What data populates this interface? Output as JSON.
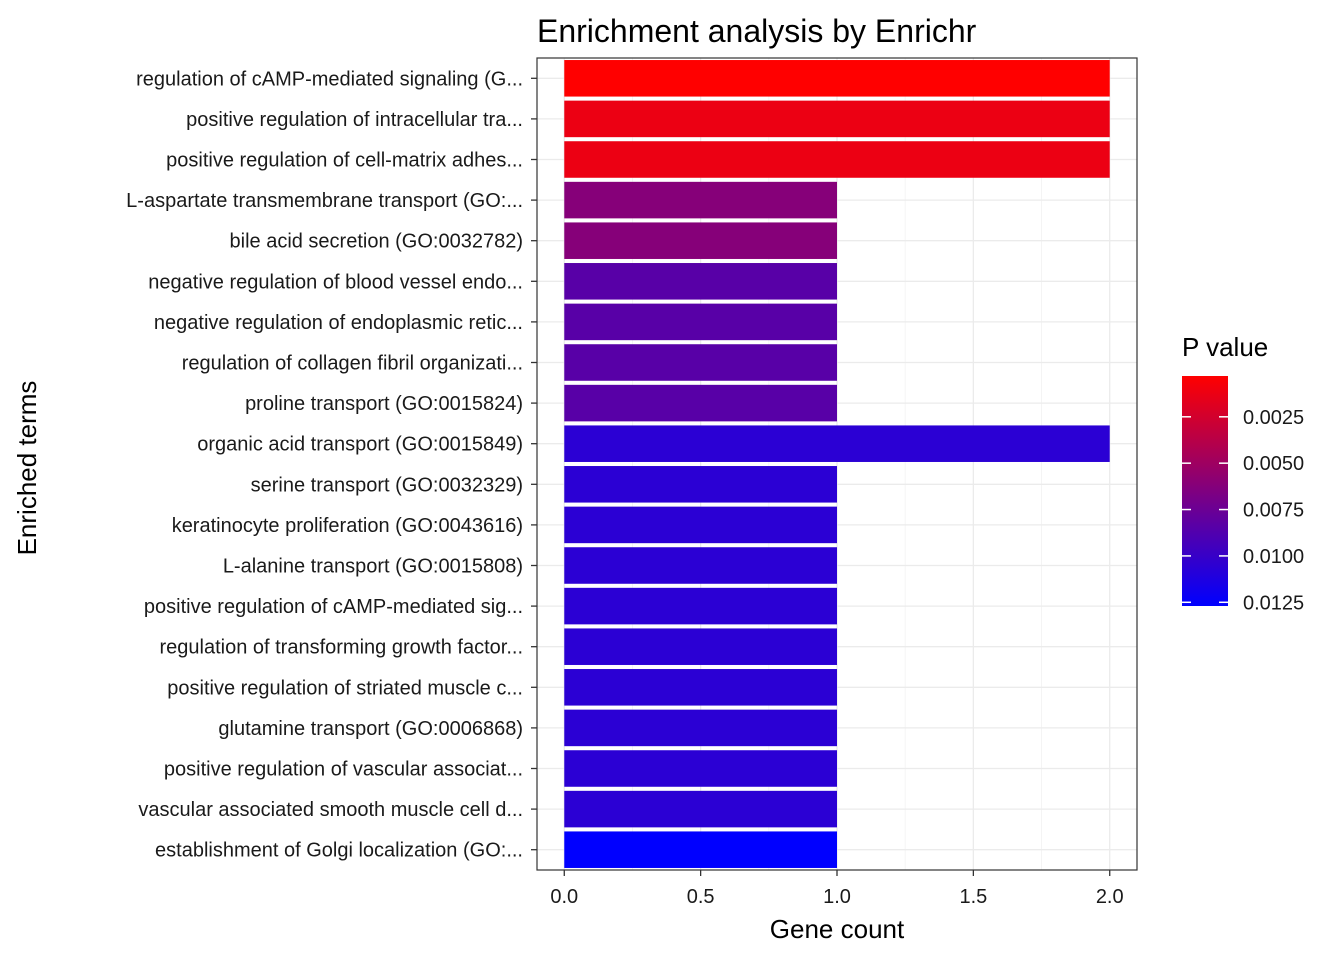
{
  "chart_data": {
    "type": "bar",
    "orientation": "horizontal",
    "title": "Enrichment analysis by Enrichr",
    "xlabel": "Gene count",
    "ylabel": "Enriched terms",
    "xlim": [
      -0.1,
      2.1
    ],
    "xticks": [
      0.0,
      0.5,
      1.0,
      1.5,
      2.0
    ],
    "xtick_labels": [
      "0.0",
      "0.5",
      "1.0",
      "1.5",
      "2.0"
    ],
    "grid": true,
    "categories": [
      "regulation of cAMP-mediated signaling (G...",
      "positive regulation of intracellular tra...",
      "positive regulation of cell-matrix adhes...",
      "L-aspartate transmembrane transport (GO:...",
      "bile acid secretion (GO:0032782)",
      "negative regulation of blood vessel endo...",
      "negative regulation of endoplasmic retic...",
      "regulation of collagen fibril organizati...",
      "proline transport (GO:0015824)",
      "organic acid transport (GO:0015849)",
      "serine transport (GO:0032329)",
      "keratinocyte proliferation (GO:0043616)",
      "L-alanine transport (GO:0015808)",
      "positive regulation of cAMP-mediated sig...",
      "regulation of transforming growth factor...",
      "positive regulation of striated muscle c...",
      "glutamine transport (GO:0006868)",
      "positive regulation of vascular associat...",
      "vascular associated smooth muscle cell d...",
      "establishment of Golgi localization (GO:..."
    ],
    "values": [
      2,
      2,
      2,
      1,
      1,
      1,
      1,
      1,
      1,
      2,
      1,
      1,
      1,
      1,
      1,
      1,
      1,
      1,
      1,
      1
    ],
    "p_values": [
      0.0003,
      0.0012,
      0.0012,
      0.0062,
      0.0062,
      0.0084,
      0.0084,
      0.0084,
      0.0084,
      0.0106,
      0.0106,
      0.0106,
      0.0106,
      0.0106,
      0.0106,
      0.0106,
      0.0106,
      0.0106,
      0.0106,
      0.0127
    ],
    "legend": {
      "title": "P value",
      "position": "right",
      "ticks": [
        0.0025,
        0.005,
        0.0075,
        0.01,
        0.0125
      ],
      "tick_labels": [
        "0.0025",
        "0.0050",
        "0.0075",
        "0.0100",
        "0.0125"
      ],
      "range": [
        0.0003,
        0.0127
      ],
      "low_color": "#ff0000",
      "high_color": "#0000ff"
    }
  }
}
